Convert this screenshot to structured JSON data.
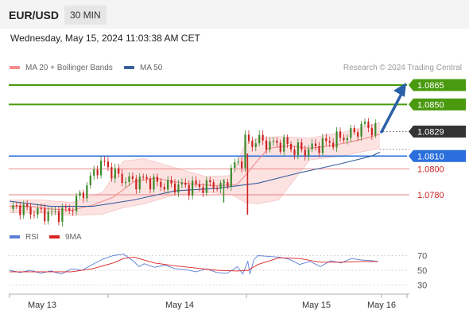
{
  "header": {
    "symbol": "EUR/USD",
    "timeframe": "30 MIN"
  },
  "datetime": "Wednesday, May 15, 2024 11:03:38 AM CET",
  "legend": {
    "ma20_bb": {
      "label": "MA 20 + Bollinger Bands",
      "color": "#f28b8b"
    },
    "ma50": {
      "label": "MA 50",
      "color": "#3a5f9e"
    }
  },
  "credit": "Research © 2024 Trading Central",
  "colors": {
    "resistance": "#4a9a10",
    "support": "#2a6fdb",
    "current": "#333333",
    "minor_level": "#e88080",
    "minor_text": "#cc2222",
    "bull": "#3a8a2a",
    "bear": "#cc2222",
    "band_fill": "#fde2e2",
    "arrow": "#2a5fa8",
    "rsi": "#5b7fd6",
    "rsi_ma": "#dd2222"
  },
  "levels": [
    {
      "value": 1.0865,
      "label": "1.0865",
      "kind": "resistance"
    },
    {
      "value": 1.085,
      "label": "1.0850",
      "kind": "resistance"
    },
    {
      "value": 1.0829,
      "label": "1.0829",
      "kind": "current"
    },
    {
      "value": 1.081,
      "label": "1.0810",
      "kind": "support"
    },
    {
      "value": 1.08,
      "label": "1.0800",
      "kind": "minor"
    },
    {
      "value": 1.078,
      "label": "1.0780",
      "kind": "minor"
    }
  ],
  "rsi_panel": {
    "legend": [
      {
        "label": "RSI",
        "color": "#5b7fd6"
      },
      {
        "label": "9MA",
        "color": "#dd2222"
      }
    ],
    "levels": [
      {
        "value": 70,
        "label": "70"
      },
      {
        "value": 50,
        "label": "50"
      },
      {
        "value": 30,
        "label": "30"
      }
    ]
  },
  "chart_data": {
    "type": "line",
    "instrument": "EUR/USD",
    "interval": "30 MIN",
    "x_ticks": [
      "May 13",
      "May 14",
      "May 15",
      "May 16"
    ],
    "ylim": [
      1.0758,
      1.0875
    ],
    "price_path": {
      "x": [
        0,
        8,
        16,
        24,
        32,
        40,
        50,
        56,
        60,
        66,
        72,
        78,
        85,
        92,
        100,
        110,
        115,
        120,
        128,
        135,
        140,
        146,
        154,
        160,
        164,
        172,
        180,
        190,
        196,
        202,
        208,
        214,
        219,
        224,
        228,
        231,
        232,
        234,
        236,
        240,
        246,
        252,
        260,
        268,
        274,
        280,
        286,
        292,
        298,
        304,
        310,
        316,
        322,
        328,
        334,
        340,
        344,
        348,
        351,
        354
      ],
      "y": [
        1.0769,
        1.0771,
        1.0768,
        1.0767,
        1.0766,
        1.0765,
        1.0766,
        1.0768,
        1.077,
        1.0777,
        1.0783,
        1.0792,
        1.0802,
        1.0804,
        1.0797,
        1.0792,
        1.0791,
        1.079,
        1.0792,
        1.0791,
        1.0789,
        1.0788,
        1.0787,
        1.0787,
        1.0787,
        1.0786,
        1.0787,
        1.0786,
        1.079,
        1.0784,
        1.0789,
        1.0797,
        1.0806,
        1.0805,
        1.0822,
        1.0823,
        1.0812,
        1.0818,
        1.0823,
        1.0822,
        1.0821,
        1.0819,
        1.082,
        1.0819,
        1.0815,
        1.0815,
        1.0814,
        1.0816,
        1.0818,
        1.082,
        1.0821,
        1.0823,
        1.0825,
        1.0826,
        1.0829,
        1.0832,
        1.0835,
        1.0831,
        1.0832,
        1.0829
      ]
    },
    "ma20": {
      "x": [
        0,
        20,
        40,
        60,
        80,
        100,
        120,
        140,
        160,
        180,
        200,
        220,
        228,
        236,
        250,
        270,
        290,
        310,
        330,
        350,
        358
      ],
      "y": [
        1.0771,
        1.0771,
        1.0769,
        1.0768,
        1.0772,
        1.0778,
        1.079,
        1.0793,
        1.079,
        1.0788,
        1.0787,
        1.0788,
        1.0795,
        1.0803,
        1.0816,
        1.0818,
        1.0816,
        1.0818,
        1.0821,
        1.0825,
        1.0827
      ]
    },
    "ma50": {
      "x": [
        0,
        40,
        80,
        120,
        160,
        200,
        240,
        280,
        320,
        350,
        358
      ],
      "y": [
        1.0775,
        1.0771,
        1.0771,
        1.0776,
        1.0783,
        1.0785,
        1.0789,
        1.0797,
        1.0804,
        1.081,
        1.0813
      ]
    },
    "bb_upper": {
      "x": [
        0,
        30,
        60,
        90,
        110,
        130,
        160,
        190,
        215,
        228,
        240,
        260,
        290,
        320,
        345,
        358
      ],
      "y": [
        1.0776,
        1.0776,
        1.0774,
        1.0782,
        1.0806,
        1.0808,
        1.0801,
        1.0794,
        1.0795,
        1.082,
        1.0824,
        1.0825,
        1.0824,
        1.0828,
        1.0833,
        1.0836
      ]
    },
    "bb_lower": {
      "x": [
        0,
        30,
        60,
        90,
        110,
        130,
        160,
        190,
        215,
        228,
        240,
        260,
        290,
        320,
        345,
        358
      ],
      "y": [
        1.0766,
        1.0766,
        1.0764,
        1.0765,
        1.077,
        1.0773,
        1.078,
        1.0782,
        1.078,
        1.0774,
        1.0773,
        1.0776,
        1.0807,
        1.081,
        1.0814,
        1.0816
      ]
    },
    "rsi": {
      "x": [
        0,
        10,
        20,
        30,
        40,
        50,
        60,
        70,
        80,
        90,
        100,
        110,
        120,
        125,
        130,
        140,
        150,
        160,
        170,
        180,
        190,
        200,
        210,
        220,
        225,
        230,
        232,
        236,
        240,
        250,
        260,
        270,
        280,
        290,
        300,
        310,
        320,
        330,
        340,
        350,
        356
      ],
      "y": [
        50,
        47,
        50,
        46,
        49,
        45,
        52,
        50,
        58,
        65,
        70,
        72,
        62,
        55,
        59,
        54,
        57,
        52,
        51,
        48,
        52,
        47,
        46,
        55,
        45,
        62,
        45,
        65,
        70,
        69,
        68,
        65,
        58,
        62,
        55,
        63,
        60,
        66,
        64,
        63,
        62
      ]
    },
    "rsi_ma": {
      "x": [
        0,
        20,
        40,
        60,
        80,
        100,
        110,
        120,
        140,
        160,
        180,
        200,
        220,
        230,
        240,
        260,
        280,
        300,
        320,
        340,
        356
      ],
      "y": [
        48,
        48,
        48,
        48,
        52,
        60,
        66,
        68,
        60,
        56,
        53,
        50,
        49,
        50,
        58,
        67,
        66,
        61,
        61,
        62,
        62
      ]
    },
    "rsi_ylim": [
      20,
      80
    ]
  }
}
